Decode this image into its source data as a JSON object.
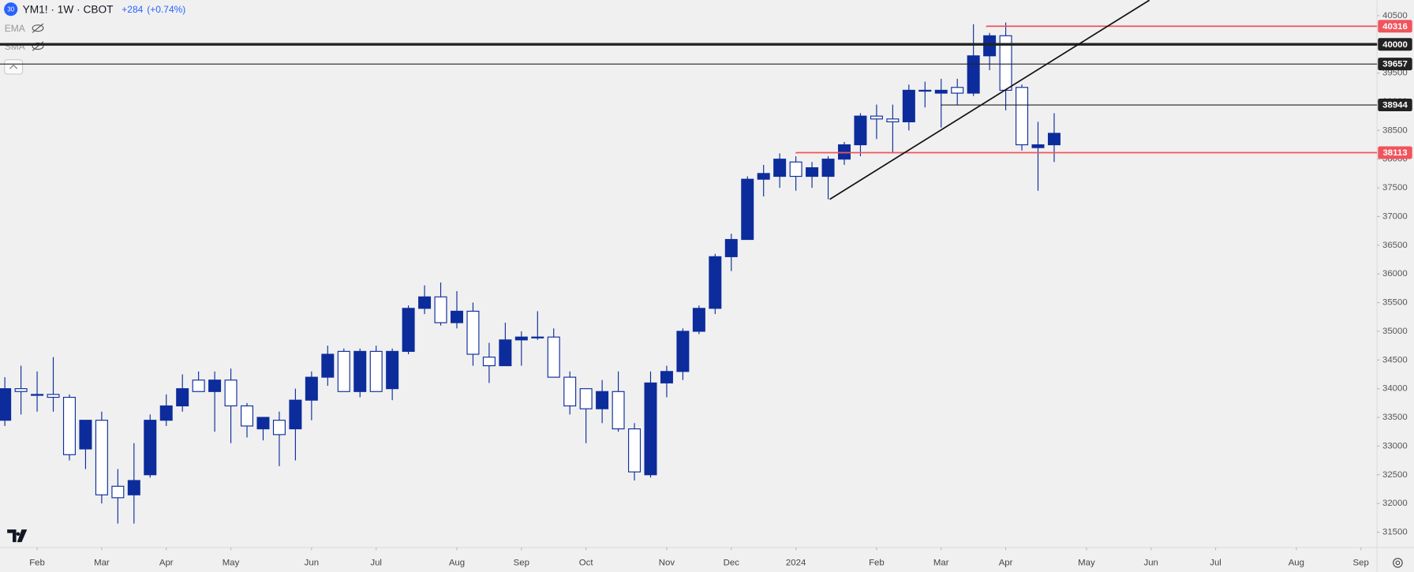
{
  "chart_data": {
    "type": "candlestick",
    "symbol": "YM1! · 1W · CBOT",
    "change": "+284",
    "change_pct": "(+0.74%)",
    "indicators": [
      "EMA",
      "SMA"
    ],
    "badge": "30",
    "up_color": "#0c2c9c",
    "down_color": "#ffffff",
    "border_color": "#0c2c9c",
    "xlim": [
      -0.3,
      85
    ],
    "ylim": [
      31280,
      40770
    ],
    "yticks": [
      31500,
      32000,
      32500,
      33000,
      33500,
      34000,
      34500,
      35000,
      35500,
      36000,
      36500,
      37000,
      37500,
      38000,
      38500,
      39000,
      39500,
      40000,
      40500
    ],
    "xticks": [
      {
        "value": 2,
        "label": "Feb"
      },
      {
        "value": 6,
        "label": "Mar"
      },
      {
        "value": 10,
        "label": "Apr"
      },
      {
        "value": 14,
        "label": "May"
      },
      {
        "value": 19,
        "label": "Jun"
      },
      {
        "value": 23,
        "label": "Jul"
      },
      {
        "value": 28,
        "label": "Aug"
      },
      {
        "value": 32,
        "label": "Sep"
      },
      {
        "value": 36,
        "label": "Oct"
      },
      {
        "value": 41,
        "label": "Nov"
      },
      {
        "value": 45,
        "label": "Dec"
      },
      {
        "value": 49,
        "label": "2024"
      },
      {
        "value": 54,
        "label": "Feb"
      },
      {
        "value": 58,
        "label": "Mar"
      },
      {
        "value": 62,
        "label": "Apr"
      },
      {
        "value": 67,
        "label": "May"
      },
      {
        "value": 71,
        "label": "Jun"
      },
      {
        "value": 75,
        "label": "Jul"
      },
      {
        "value": 80,
        "label": "Aug"
      },
      {
        "value": 84,
        "label": "Sep"
      }
    ],
    "open": [
      33450,
      34000,
      33900,
      33900,
      33850,
      32950,
      33450,
      32300,
      32150,
      32500,
      33450,
      33700,
      34150,
      33950,
      34150,
      33700,
      33300,
      33450,
      33300,
      33800,
      34200,
      34650,
      33950,
      34650,
      34000,
      34650,
      35400,
      35600,
      35150,
      35350,
      34550,
      34400,
      34850,
      34900,
      34900,
      34200,
      34000,
      33650,
      33950,
      33300,
      32500,
      34100,
      34300,
      35000,
      35400,
      36300,
      36600,
      37650,
      37700,
      37950,
      37700,
      37700,
      38000,
      38250,
      38750,
      38700,
      38650,
      39200,
      39150,
      39250,
      39150,
      39800,
      40150,
      39250,
      38200,
      38250
    ],
    "high": [
      34200,
      34400,
      34300,
      34550,
      33900,
      33400,
      33600,
      32600,
      33050,
      33550,
      33900,
      34250,
      34300,
      34300,
      34350,
      33750,
      33500,
      33600,
      34000,
      34300,
      34750,
      34700,
      34700,
      34750,
      34700,
      35450,
      35800,
      35850,
      35700,
      35500,
      34800,
      35150,
      35000,
      35350,
      35050,
      34300,
      34000,
      34150,
      34300,
      33400,
      34300,
      34400,
      35050,
      35450,
      36350,
      36700,
      37700,
      37900,
      38100,
      38050,
      37950,
      38050,
      38300,
      38800,
      38950,
      38950,
      39300,
      39350,
      39400,
      39400,
      40350,
      40200,
      40380,
      39300,
      38650,
      38800
    ],
    "low": [
      33350,
      33550,
      33600,
      33600,
      32750,
      32600,
      32000,
      31650,
      31650,
      32450,
      33350,
      33600,
      33950,
      33250,
      33050,
      33150,
      33100,
      32650,
      32750,
      33450,
      34050,
      33950,
      33850,
      33950,
      33800,
      34600,
      35300,
      35100,
      35050,
      34400,
      34100,
      34400,
      34400,
      34850,
      34200,
      33550,
      33050,
      33400,
      33250,
      32400,
      32450,
      33850,
      34150,
      34950,
      35300,
      36050,
      36600,
      37350,
      37500,
      37450,
      37500,
      37300,
      37900,
      38050,
      38350,
      38100,
      38500,
      38900,
      38550,
      38950,
      39100,
      39550,
      38850,
      38150,
      37450,
      37950
    ],
    "close": [
      34000,
      33950,
      33900,
      33850,
      32850,
      33450,
      32150,
      32100,
      32400,
      33450,
      33700,
      34000,
      33950,
      34150,
      33700,
      33350,
      33500,
      33200,
      33800,
      34200,
      34600,
      33950,
      34650,
      33950,
      34650,
      35400,
      35600,
      35150,
      35350,
      34600,
      34400,
      34850,
      34900,
      34900,
      34200,
      33700,
      33650,
      33950,
      33300,
      32550,
      34100,
      34300,
      35000,
      35400,
      36300,
      36600,
      37650,
      37750,
      38000,
      37700,
      37850,
      38000,
      38250,
      38750,
      38700,
      38650,
      39200,
      39200,
      39200,
      39150,
      39800,
      40150,
      39200,
      38250,
      38250,
      38450
    ],
    "levels": [
      {
        "value": 40316,
        "color": "#f0545c",
        "start": 60.8,
        "line_width": 1.5
      },
      {
        "value": 40000,
        "color": "#222222",
        "line_width": 3
      },
      {
        "value": 39657,
        "color": "#222222",
        "line_width": 1
      },
      {
        "value": 38944,
        "color": "#222222",
        "start": 58,
        "line_width": 1
      },
      {
        "value": 38113,
        "color": "#f0545c",
        "start": 49,
        "line_width": 1.5
      }
    ],
    "trendline": {
      "x": [
        51.1,
        70.9
      ],
      "y": [
        37300,
        40770
      ],
      "color": "#111111"
    }
  }
}
